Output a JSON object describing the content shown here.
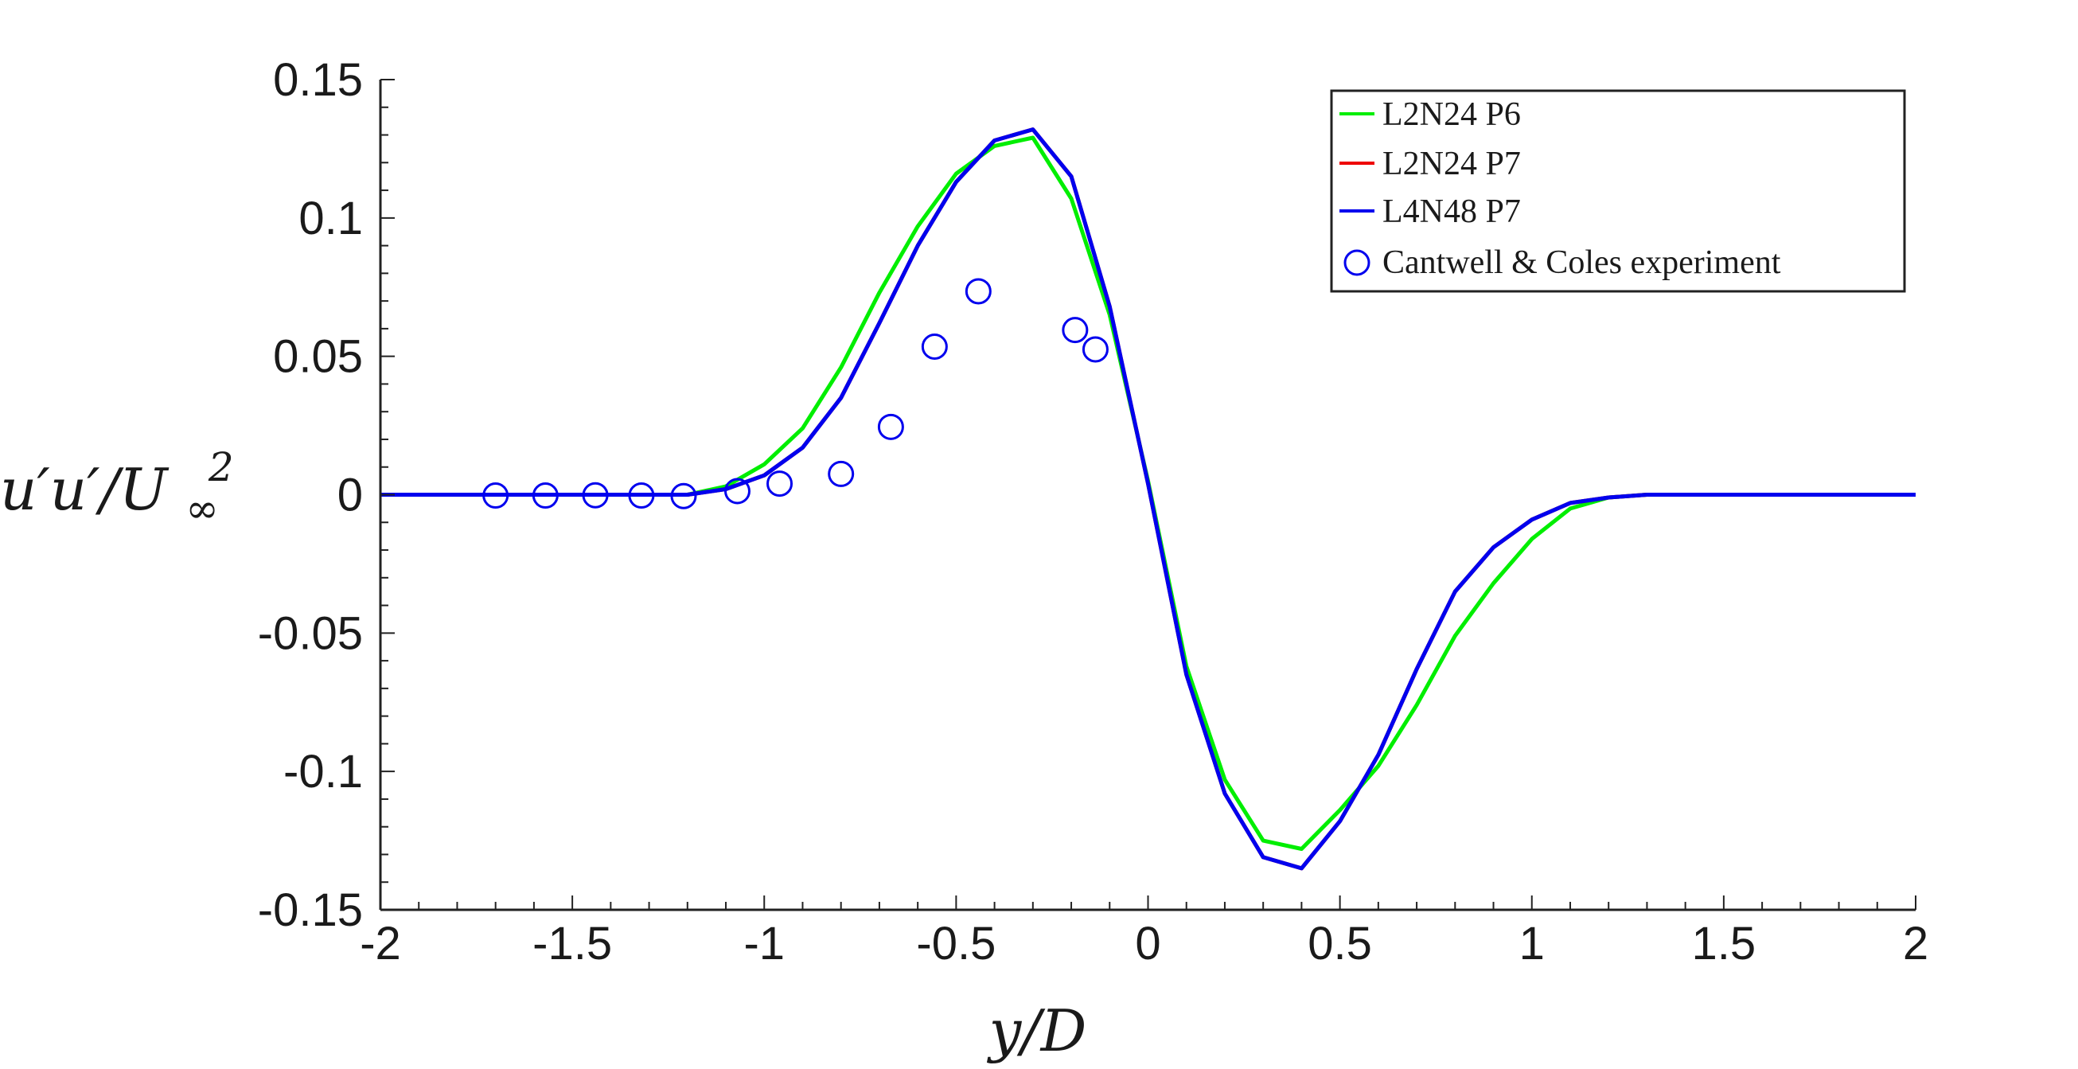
{
  "chart_data": {
    "type": "line",
    "title": "",
    "xlabel": "y/D",
    "ylabel": "u'u'/U∞²",
    "ylabel_parts": {
      "main": "u′u′/U",
      "sub": "∞",
      "sup": "2"
    },
    "xlim": [
      -2,
      2
    ],
    "ylim": [
      -0.15,
      0.15
    ],
    "xticks": [
      -2,
      -1.5,
      -1,
      -0.5,
      0,
      0.5,
      1,
      1.5,
      2
    ],
    "xtick_labels": [
      "-2",
      "-1.5",
      "-1",
      "-0.5",
      "0",
      "0.5",
      "1",
      "1.5",
      "2"
    ],
    "yticks": [
      0.15,
      0.1,
      0.05,
      0,
      -0.05,
      -0.1,
      -0.15
    ],
    "ytick_labels": [
      "0.15",
      "0.1",
      "0.05",
      "0",
      "-0.05",
      "-0.1",
      "-0.15"
    ],
    "grid": false,
    "legend_position": "top-right",
    "series": [
      {
        "name": "L2N24 P6",
        "kind": "line",
        "color": "#00ee00",
        "x": [
          -2,
          -1.5,
          -1.2,
          -1.1,
          -1.0,
          -0.9,
          -0.8,
          -0.7,
          -0.6,
          -0.5,
          -0.4,
          -0.3,
          -0.2,
          -0.1,
          0.0,
          0.1,
          0.2,
          0.3,
          0.4,
          0.5,
          0.6,
          0.7,
          0.8,
          0.9,
          1.0,
          1.1,
          1.2,
          1.3,
          1.5,
          2.0
        ],
        "y": [
          0,
          0,
          0,
          0.003,
          0.011,
          0.024,
          0.046,
          0.073,
          0.097,
          0.116,
          0.126,
          0.129,
          0.107,
          0.065,
          0.005,
          -0.062,
          -0.103,
          -0.125,
          -0.128,
          -0.114,
          -0.098,
          -0.076,
          -0.051,
          -0.032,
          -0.016,
          -0.005,
          -0.001,
          0,
          0,
          0
        ]
      },
      {
        "name": "L2N24 P7",
        "kind": "line",
        "color": "#ee0000",
        "x": [
          -2,
          -1.5,
          -1.2,
          -1.1,
          -1.0,
          -0.9,
          -0.8,
          -0.7,
          -0.6,
          -0.5,
          -0.4,
          -0.3,
          -0.2,
          -0.1,
          0.0,
          0.1,
          0.2,
          0.3,
          0.4,
          0.5,
          0.6,
          0.7,
          0.8,
          0.9,
          1.0,
          1.1,
          1.2,
          1.3,
          1.5,
          2.0
        ],
        "y": [
          0,
          0,
          0,
          0.002,
          0.007,
          0.017,
          0.035,
          0.062,
          0.09,
          0.113,
          0.128,
          0.132,
          0.115,
          0.068,
          0.004,
          -0.065,
          -0.108,
          -0.131,
          -0.135,
          -0.118,
          -0.094,
          -0.063,
          -0.035,
          -0.019,
          -0.009,
          -0.003,
          -0.001,
          0,
          0,
          0
        ]
      },
      {
        "name": "L4N48 P7",
        "kind": "line",
        "color": "#0000ee",
        "x": [
          -2,
          -1.5,
          -1.2,
          -1.1,
          -1.0,
          -0.9,
          -0.8,
          -0.7,
          -0.6,
          -0.5,
          -0.4,
          -0.3,
          -0.2,
          -0.1,
          0.0,
          0.1,
          0.2,
          0.3,
          0.4,
          0.5,
          0.6,
          0.7,
          0.8,
          0.9,
          1.0,
          1.1,
          1.2,
          1.3,
          1.5,
          2.0
        ],
        "y": [
          0,
          0,
          0,
          0.002,
          0.007,
          0.017,
          0.035,
          0.062,
          0.09,
          0.113,
          0.128,
          0.132,
          0.115,
          0.068,
          0.004,
          -0.065,
          -0.108,
          -0.131,
          -0.135,
          -0.118,
          -0.094,
          -0.063,
          -0.035,
          -0.019,
          -0.009,
          -0.003,
          -0.001,
          0,
          0,
          0
        ]
      },
      {
        "name": "Cantwell & Coles experiment",
        "kind": "scatter",
        "marker": "circle",
        "color": "#0000ee",
        "x": [
          -1.7,
          -1.57,
          -1.44,
          -1.32,
          -1.21,
          -1.07,
          -0.96,
          -0.8,
          -0.67,
          -0.556,
          -0.442,
          -0.19,
          -0.137
        ],
        "y": [
          -0.0003,
          -0.0003,
          -0.0002,
          -0.0003,
          -0.0005,
          0.0013,
          0.004,
          0.0075,
          0.0245,
          0.0535,
          0.0735,
          0.0595,
          0.0525
        ]
      }
    ]
  }
}
